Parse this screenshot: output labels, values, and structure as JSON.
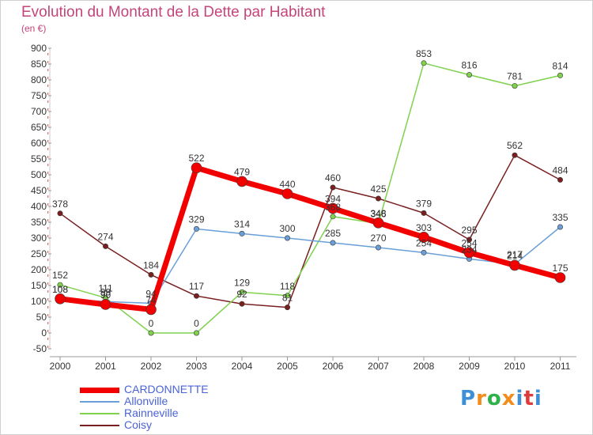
{
  "header": {
    "title": "Evolution du Montant de la Dette par Habitant",
    "subtitle": "(en €)"
  },
  "brand": {
    "letters": [
      "P",
      "r",
      "o",
      "x",
      "i",
      "t",
      "i"
    ],
    "colors": [
      "#3f8fd6",
      "#f28c1c",
      "#2fb24a",
      "#f28c1c",
      "#3f8fd6",
      "#e03b3b",
      "#3f8fd6"
    ]
  },
  "chart_data": {
    "type": "line",
    "title": "Evolution du Montant de la Dette par Habitant",
    "subtitle": "(en €)",
    "x": [
      "2000",
      "2001",
      "2002",
      "2003",
      "2004",
      "2005",
      "2006",
      "2007",
      "2008",
      "2009",
      "2010",
      "2011"
    ],
    "ylim": [
      -50,
      900
    ],
    "ytick_step": 50,
    "grid": false,
    "legend_position": "bottom-left",
    "series": [
      {
        "name": "Coisy",
        "color": "#7a1f1f",
        "values": [
          378,
          274,
          184,
          117,
          92,
          81,
          460,
          425,
          379,
          295,
          562,
          484
        ]
      },
      {
        "name": "Rainneville",
        "color": "#7fd14e",
        "values": [
          152,
          111,
          0,
          0,
          129,
          118,
          368,
          346,
          853,
          816,
          781,
          814
        ]
      },
      {
        "name": "Allonville",
        "color": "#6a9fd8",
        "values": [
          108,
          99,
          94,
          329,
          314,
          300,
          285,
          270,
          254,
          234,
          217,
          335
        ]
      },
      {
        "name": "CARDONNETTE",
        "color": "#f20000",
        "values": [
          108,
          90,
          74,
          522,
          479,
          440,
          394,
          348,
          303,
          254,
          214,
          175
        ]
      }
    ]
  }
}
